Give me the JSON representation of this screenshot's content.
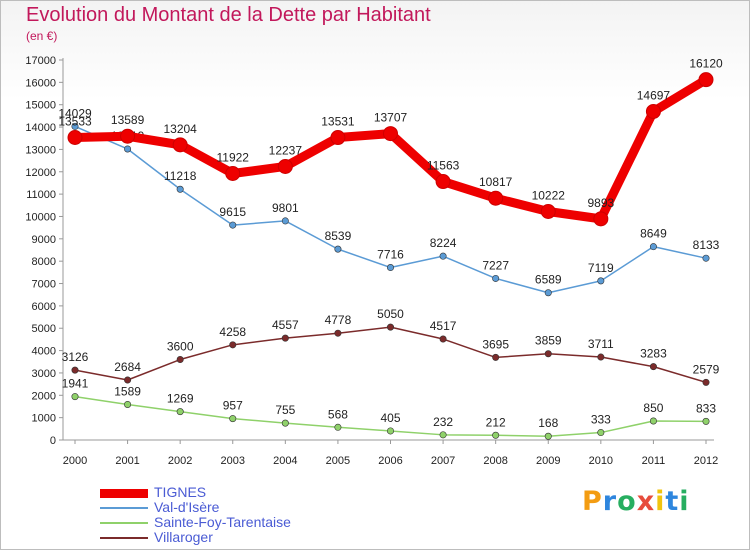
{
  "chart_data": {
    "type": "line",
    "title": "Evolution du Montant de la Dette par Habitant",
    "subtitle": "(en €)",
    "x": [
      "2000",
      "2001",
      "2002",
      "2003",
      "2004",
      "2005",
      "2006",
      "2007",
      "2008",
      "2009",
      "2010",
      "2011",
      "2012"
    ],
    "ylim": [
      0,
      17000
    ],
    "yticks": [
      0,
      1000,
      2000,
      3000,
      4000,
      5000,
      6000,
      7000,
      8000,
      9000,
      10000,
      11000,
      12000,
      13000,
      14000,
      15000,
      16000,
      17000
    ],
    "grid": false,
    "legend_position": "bottom-left",
    "series": [
      {
        "name": "TIGNES",
        "color": "#ee0000",
        "values": [
          13533,
          13589,
          13204,
          11922,
          12237,
          13531,
          13707,
          11563,
          10817,
          10222,
          9893,
          14697,
          16120
        ]
      },
      {
        "name": "Val-d'Isère",
        "color": "#5b9bd5",
        "values": [
          14029,
          13019,
          11218,
          9615,
          9801,
          8539,
          7716,
          8224,
          7227,
          6589,
          7119,
          8649,
          8133
        ]
      },
      {
        "name": "Sainte-Foy-Tarentaise",
        "color": "#8fd16a",
        "values": [
          1941,
          1589,
          1269,
          957,
          755,
          568,
          405,
          232,
          212,
          168,
          333,
          850,
          833
        ]
      },
      {
        "name": "Villaroger",
        "color": "#7b2b2b",
        "values": [
          3126,
          2684,
          3600,
          4258,
          4557,
          4778,
          5050,
          4517,
          3695,
          3859,
          3711,
          3283,
          2579
        ]
      }
    ]
  },
  "logo": {
    "letters": [
      "P",
      "r",
      "o",
      "x",
      "i",
      "t",
      "i"
    ],
    "colors": [
      "#f39c12",
      "#2e86de",
      "#27ae60",
      "#e74c3c",
      "#f1c40f",
      "#2e86de",
      "#27ae60"
    ]
  }
}
